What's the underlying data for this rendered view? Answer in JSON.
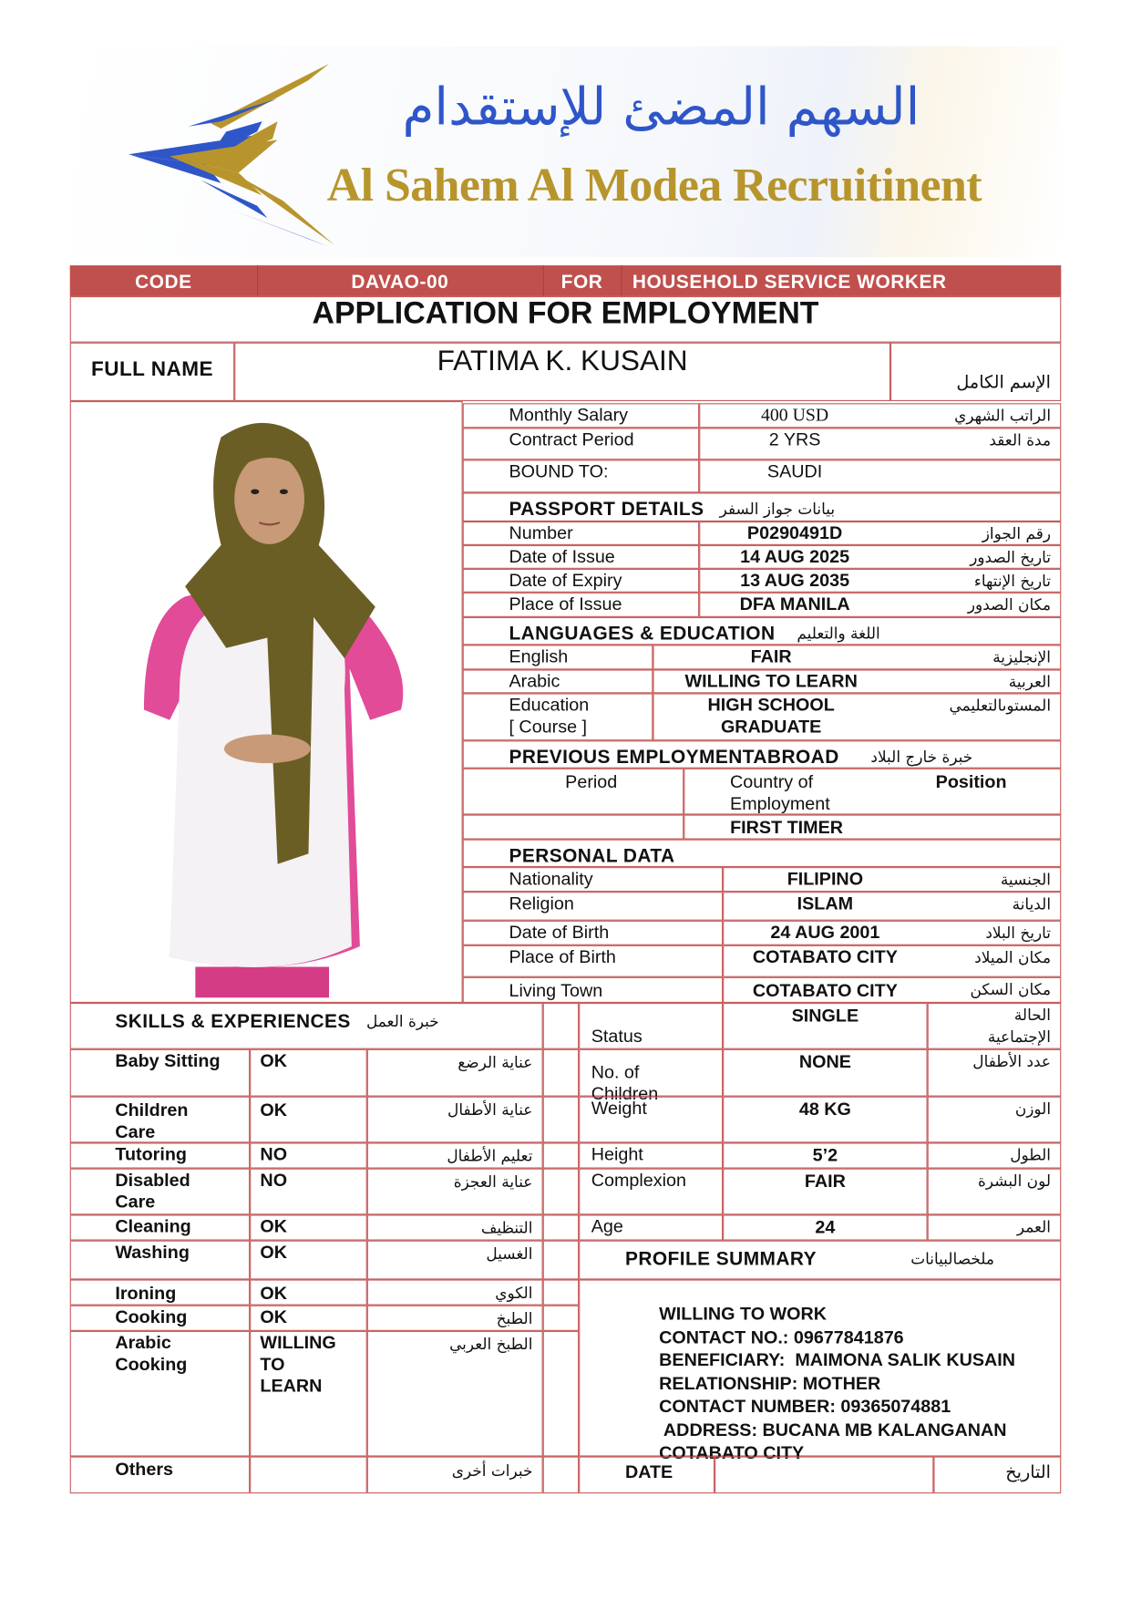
{
  "logo": {
    "arabic_name": "السهم المضئ للإستقدام",
    "english_name": "Al Sahem Al Modea Recruitinent",
    "blue": "#2f56c9",
    "gold": "#b8952c"
  },
  "header_bar": {
    "code_label": "CODE",
    "code_value": "DAVAO-00",
    "for_label": "FOR",
    "position": "HOUSEHOLD SERVICE WORKER",
    "color": "#c0504d"
  },
  "title": "APPLICATION FOR EMPLOYMENT",
  "full_name": {
    "label": "FULL NAME",
    "value": "FATIMA K. KUSAIN",
    "arabic": "الإسم الكامل"
  },
  "contract": [
    {
      "label": "Monthly Salary",
      "value": "400 USD",
      "arabic": "الراتب الشهري"
    },
    {
      "label": "Contract Period",
      "value": "2 YRS",
      "arabic": "مدة العقد"
    },
    {
      "label": "BOUND TO:",
      "value": "SAUDI",
      "arabic": ""
    }
  ],
  "passport": {
    "title": "PASSPORT DETAILS",
    "arabic": "بيانات جواز السفر",
    "rows": [
      {
        "label": "Number",
        "value": "P0290491D",
        "arabic": "رقم الجواز"
      },
      {
        "label": "Date of Issue",
        "value": "14 AUG 2025",
        "arabic": "تاريخ الصدور"
      },
      {
        "label": "Date of Expiry",
        "value": "13 AUG 2035",
        "arabic": "تاريخ الإنتهاء"
      },
      {
        "label": "Place of Issue",
        "value": "DFA MANILA",
        "arabic": "مكان الصدور"
      }
    ]
  },
  "languages": {
    "title": "LANGUAGES & EDUCATION",
    "arabic": "اللغة والتعليم",
    "rows": [
      {
        "label": "English",
        "value": "FAIR",
        "arabic": "الإنجليزية"
      },
      {
        "label": "Arabic",
        "value": "WILLING TO LEARN",
        "arabic": "العربية"
      },
      {
        "label": "Education\n[ Course ]",
        "value": "HIGH SCHOOL\nGRADUATE",
        "arabic": "المستوىالتعليمي"
      }
    ]
  },
  "previous_employment": {
    "title": "PREVIOUS EMPLOYMENTABROAD",
    "arabic": "خبرة خارج البلاد",
    "col_period": "Period",
    "col_country": "Country of\nEmployment",
    "col_position": "Position",
    "value": "FIRST TIMER"
  },
  "personal": {
    "title": "PERSONAL DATA",
    "rows": [
      {
        "label": "Nationality",
        "value": "FILIPINO",
        "arabic": "الجنسية"
      },
      {
        "label": "Religion",
        "value": "ISLAM",
        "arabic": "الديانة"
      },
      {
        "label": "Date of Birth",
        "value": "24 AUG 2001",
        "arabic": "تاريخ البلاد"
      },
      {
        "label": "Place of Birth",
        "value": "COTABATO CITY",
        "arabic": "مكان الميلاد"
      },
      {
        "label": "Living Town",
        "value": "COTABATO CITY",
        "arabic": "مكان السكن"
      },
      {
        "label": "Status",
        "value": "SINGLE",
        "arabic": "الحالة\nالإجتماعية"
      },
      {
        "label": "No. of\nChildren",
        "value": "NONE",
        "arabic": "عدد الأطفال"
      },
      {
        "label": "Weight",
        "value": "48 KG",
        "arabic": "الوزن"
      },
      {
        "label": "Height",
        "value": "5’2",
        "arabic": "الطول"
      },
      {
        "label": "Complexion",
        "value": "FAIR",
        "arabic": "لون البشرة"
      },
      {
        "label": "Age",
        "value": "24",
        "arabic": "العمر"
      }
    ]
  },
  "skills": {
    "title": "SKILLS & EXPERIENCES",
    "arabic": "خبرة العمل",
    "rows": [
      {
        "label": "Baby Sitting",
        "value": "OK",
        "arabic": "عناية الرضع"
      },
      {
        "label": "Children\nCare",
        "value": "OK",
        "arabic": "عناية الأطفال"
      },
      {
        "label": "Tutoring",
        "value": "NO",
        "arabic": "تعليم الأطفال"
      },
      {
        "label": "Disabled\nCare",
        "value": "NO",
        "arabic": "عناية العجزة"
      },
      {
        "label": "Cleaning",
        "value": "OK",
        "arabic": "التنظيف"
      },
      {
        "label": "Washing",
        "value": "OK",
        "arabic": "الغسيل"
      },
      {
        "label": "Ironing",
        "value": "OK",
        "arabic": "الكوي"
      },
      {
        "label": "Cooking",
        "value": "OK",
        "arabic": "الطبخ"
      },
      {
        "label": "Arabic\nCooking",
        "value": "WILLING\nTO\nLEARN",
        "arabic": "الطبخ العربي"
      },
      {
        "label": "Others",
        "value": "",
        "arabic": "خبرات أخرى"
      }
    ]
  },
  "profile_summary": {
    "title": "PROFILE SUMMARY",
    "arabic": "ملخصالبيانات",
    "lines": [
      "WILLING TO WORK",
      "CONTACT NO.: 09677841876",
      "BENEFICIARY:  MAIMONA SALIK KUSAIN",
      "RELATIONSHIP: MOTHER",
      "CONTACT NUMBER: 09365074881",
      " ADDRESS: BUCANA MB KALANGANAN",
      "COTABATO CITY"
    ]
  },
  "date": {
    "label": "DATE",
    "arabic": "التاريخ",
    "value": ""
  }
}
